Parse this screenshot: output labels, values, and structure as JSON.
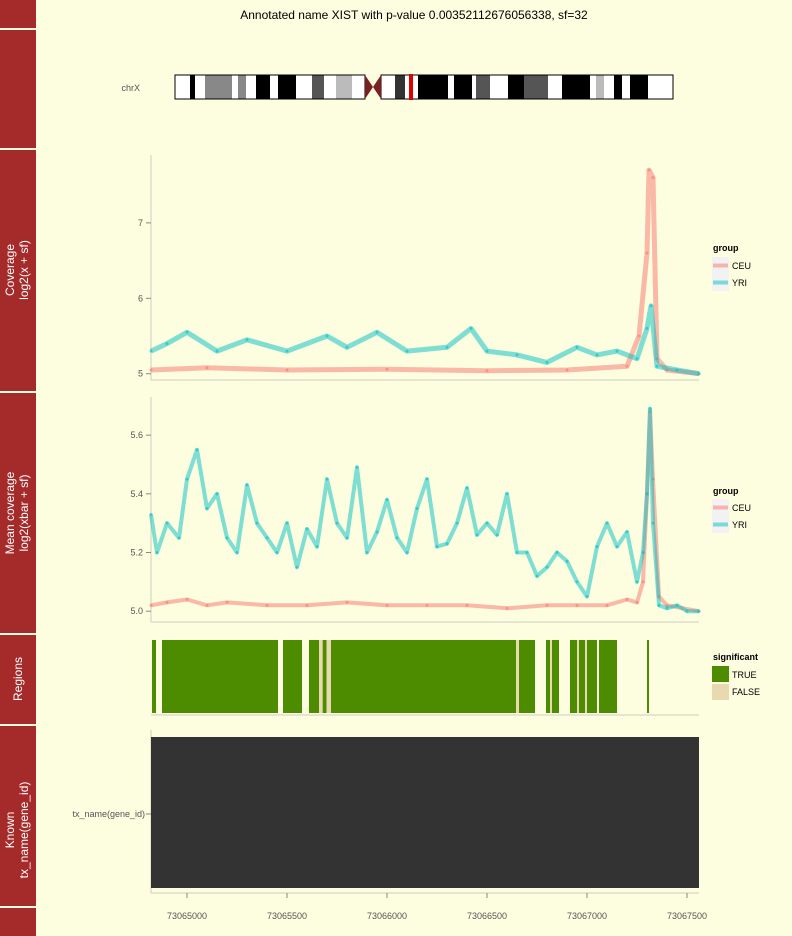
{
  "title": "Annotated name XIST with p-value 0.00352112676056338, sf=32",
  "ideogram": {
    "chrom_label": "chrX"
  },
  "tracks": {
    "coverage_label": [
      "Coverage",
      "log2(x + sf)"
    ],
    "mean_label": [
      "Mean coverage",
      "log2(xbar + sf)"
    ],
    "regions_label": "Regions",
    "known_label": [
      "Known",
      "tx_name(gene_id)"
    ]
  },
  "legends": {
    "group_title": "group",
    "group_items": [
      "CEU",
      "YRI"
    ],
    "significant_title": "significant",
    "significant_items": [
      "TRUE",
      "FALSE"
    ]
  },
  "colors": {
    "CEU": "#f8766d",
    "YRI": "#00bfc4",
    "TRUE": "#4d8c00",
    "FALSE": "#e8d9b0",
    "gene": "#333333",
    "strip": "#a52a2a",
    "background": "#fdfde0"
  },
  "chart_data": {
    "type": "line",
    "x_range": [
      73064820,
      73067560
    ],
    "x_ticks": [
      "73065000",
      "73065500",
      "73066000",
      "73066500",
      "73067000",
      "73067500"
    ],
    "coverage_panel": {
      "ylim": [
        4.97,
        7.9
      ],
      "y_ticks": [
        "5",
        "6",
        "7"
      ],
      "series": [
        {
          "name": "CEU",
          "x": [
            73064820,
            73065100,
            73065500,
            73066000,
            73066500,
            73066900,
            73067200,
            73067260,
            73067300,
            73067310,
            73067330,
            73067350,
            73067400,
            73067560
          ],
          "y": [
            5.05,
            5.08,
            5.05,
            5.06,
            5.04,
            5.05,
            5.1,
            5.5,
            6.6,
            7.7,
            7.6,
            5.2,
            5.05,
            5.0
          ]
        },
        {
          "name": "YRI",
          "x": [
            73064820,
            73064900,
            73065000,
            73065150,
            73065300,
            73065500,
            73065700,
            73065800,
            73065950,
            73066100,
            73066300,
            73066420,
            73066500,
            73066650,
            73066800,
            73066950,
            73067050,
            73067150,
            73067250,
            73067300,
            73067320,
            73067350,
            73067450,
            73067560
          ],
          "y": [
            5.3,
            5.4,
            5.55,
            5.3,
            5.45,
            5.3,
            5.5,
            5.35,
            5.55,
            5.3,
            5.35,
            5.6,
            5.3,
            5.25,
            5.15,
            5.35,
            5.25,
            5.3,
            5.2,
            5.6,
            5.9,
            5.1,
            5.05,
            5.0
          ]
        }
      ]
    },
    "mean_panel": {
      "ylim": [
        4.97,
        5.73
      ],
      "y_ticks": [
        "5.0",
        "5.2",
        "5.4",
        "5.6"
      ],
      "series": [
        {
          "name": "CEU",
          "x": [
            73064820,
            73064900,
            73065000,
            73065100,
            73065200,
            73065400,
            73065600,
            73065800,
            73066000,
            73066200,
            73066400,
            73066600,
            73066800,
            73066950,
            73067100,
            73067200,
            73067250,
            73067280,
            73067300,
            73067315,
            73067330,
            73067360,
            73067400,
            73067560
          ],
          "y": [
            5.02,
            5.03,
            5.04,
            5.02,
            5.03,
            5.02,
            5.02,
            5.03,
            5.02,
            5.02,
            5.02,
            5.01,
            5.02,
            5.02,
            5.02,
            5.04,
            5.03,
            5.1,
            5.4,
            5.68,
            5.45,
            5.05,
            5.02,
            5.0
          ]
        },
        {
          "name": "YRI",
          "x": [
            73064820,
            73064850,
            73064900,
            73064960,
            73065000,
            73065050,
            73065100,
            73065150,
            73065200,
            73065250,
            73065300,
            73065350,
            73065400,
            73065450,
            73065500,
            73065550,
            73065600,
            73065650,
            73065700,
            73065750,
            73065800,
            73065850,
            73065900,
            73065950,
            73066000,
            73066050,
            73066100,
            73066150,
            73066200,
            73066250,
            73066300,
            73066350,
            73066400,
            73066450,
            73066500,
            73066550,
            73066600,
            73066650,
            73066700,
            73066750,
            73066800,
            73066850,
            73066900,
            73066950,
            73067000,
            73067050,
            73067100,
            73067150,
            73067200,
            73067250,
            73067280,
            73067300,
            73067315,
            73067330,
            73067360,
            73067400,
            73067450,
            73067500,
            73067560
          ],
          "y": [
            5.33,
            5.2,
            5.3,
            5.25,
            5.45,
            5.55,
            5.35,
            5.4,
            5.25,
            5.2,
            5.43,
            5.3,
            5.25,
            5.2,
            5.3,
            5.15,
            5.28,
            5.22,
            5.45,
            5.3,
            5.25,
            5.49,
            5.2,
            5.27,
            5.38,
            5.25,
            5.2,
            5.35,
            5.45,
            5.22,
            5.23,
            5.3,
            5.42,
            5.26,
            5.3,
            5.26,
            5.4,
            5.2,
            5.2,
            5.12,
            5.15,
            5.2,
            5.17,
            5.1,
            5.05,
            5.22,
            5.3,
            5.22,
            5.27,
            5.1,
            5.2,
            5.4,
            5.69,
            5.3,
            5.02,
            5.01,
            5.02,
            5.0,
            5.0
          ]
        }
      ]
    },
    "regions": {
      "type": "table",
      "significant_true": [
        [
          73064825,
          73064845
        ],
        [
          73064875,
          73065455
        ],
        [
          73065480,
          73065575
        ],
        [
          73065610,
          73065660
        ],
        [
          73065678,
          73065698
        ],
        [
          73065720,
          73066645
        ],
        [
          73066660,
          73066740
        ],
        [
          73066795,
          73066815
        ],
        [
          73066825,
          73066860
        ],
        [
          73066915,
          73066950
        ],
        [
          73066960,
          73066990
        ],
        [
          73067000,
          73067050
        ],
        [
          73067060,
          73067150
        ],
        [
          73067300,
          73067310
        ]
      ],
      "significant_false": [
        [
          73065660,
          73065678
        ],
        [
          73065698,
          73065720
        ],
        [
          73066645,
          73066660
        ],
        [
          73066815,
          73066825
        ],
        [
          73066950,
          73066960
        ],
        [
          73066990,
          73067000
        ]
      ]
    },
    "gene_track": {
      "category": "tx_name(gene_id)",
      "range": [
        73064820,
        73067560
      ]
    }
  }
}
